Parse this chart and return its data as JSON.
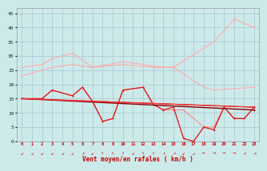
{
  "xlabel": "Vent moyen/en rafales ( km/h )",
  "background_color": "#cdeaea",
  "grid_color": "#a0b8cc",
  "xlim": [
    -0.5,
    23.5
  ],
  "ylim": [
    0,
    47
  ],
  "yticks": [
    0,
    5,
    10,
    15,
    20,
    25,
    30,
    35,
    40,
    45
  ],
  "xticks": [
    0,
    1,
    2,
    3,
    4,
    5,
    6,
    7,
    8,
    9,
    10,
    11,
    12,
    13,
    14,
    15,
    16,
    17,
    18,
    19,
    20,
    21,
    22,
    23
  ],
  "series": [
    {
      "comment": "light pink upper diagonal line - starts ~23, ends ~40",
      "color": "#ffaaaa",
      "lw": 0.9,
      "x": [
        0,
        3,
        5,
        7,
        10,
        13,
        14,
        15,
        19,
        20,
        21,
        23
      ],
      "y": [
        23,
        26,
        27,
        26,
        27,
        26,
        25,
        26,
        35,
        38,
        43,
        40
      ]
    },
    {
      "comment": "light pink second line starts ~26, goes to ~19",
      "color": "#ffaaaa",
      "lw": 0.9,
      "x": [
        0,
        2,
        3,
        5,
        7,
        10,
        14,
        15,
        19,
        21,
        23
      ],
      "y": [
        26,
        27,
        29,
        31,
        26,
        28,
        26,
        26,
        18,
        19,
        19
      ]
    },
    {
      "comment": "medium pink line starts ~15, volatile middle",
      "color": "#ff7777",
      "lw": 0.9,
      "x": [
        0,
        2,
        3,
        4,
        5,
        6,
        7,
        8,
        9,
        10,
        11,
        12,
        13,
        14,
        15,
        16,
        17,
        18,
        19,
        20,
        21,
        22,
        23
      ],
      "y": [
        15,
        15,
        18,
        16,
        16,
        19,
        14,
        7,
        8,
        18,
        19,
        13,
        12,
        11,
        11,
        11,
        11,
        5,
        5,
        12,
        8,
        8,
        12
      ]
    },
    {
      "comment": "red line - goes to 0 around x=16",
      "color": "#ee2222",
      "lw": 0.9,
      "x": [
        0,
        2,
        3,
        4,
        5,
        6,
        7,
        8,
        9,
        10,
        11,
        12,
        13,
        14,
        15,
        16,
        17,
        18,
        19,
        20,
        21,
        22,
        23
      ],
      "y": [
        15,
        15,
        18,
        16,
        16,
        19,
        14,
        7,
        8,
        18,
        19,
        13,
        12,
        11,
        12,
        1,
        0,
        5,
        4,
        12,
        8,
        8,
        12
      ]
    },
    {
      "comment": "dark diagonal line from 15 to ~11 straight",
      "color": "#990000",
      "lw": 1.1,
      "x": [
        0,
        23
      ],
      "y": [
        15,
        11
      ]
    },
    {
      "comment": "medium red near-straight declining",
      "color": "#cc2222",
      "lw": 0.9,
      "x": [
        0,
        23
      ],
      "y": [
        15,
        12
      ]
    },
    {
      "comment": "another declining red line",
      "color": "#ff4444",
      "lw": 0.9,
      "x": [
        0,
        23
      ],
      "y": [
        15,
        12
      ]
    }
  ],
  "wind_arrows": [
    "↙",
    "↙",
    "↙",
    "↙",
    "↙",
    "↙",
    "↗",
    "↙",
    "↑",
    "↑",
    "↑",
    "↙",
    "↑",
    "↑",
    "↗",
    "↗",
    "↙",
    "↙",
    "←",
    "→",
    "→",
    "→",
    "↗",
    "↗"
  ]
}
